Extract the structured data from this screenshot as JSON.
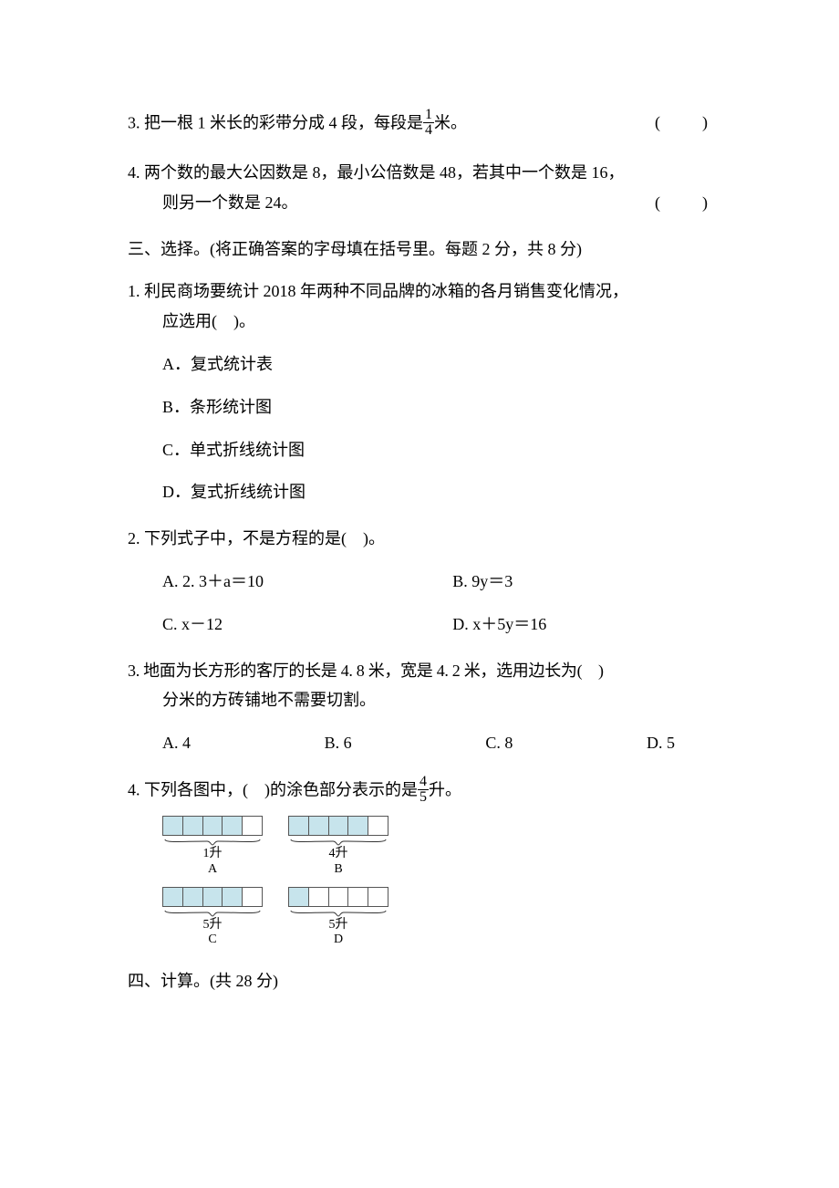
{
  "q3_tf": {
    "pre": "3. 把一根 1 米长的彩带分成 4 段，每段是",
    "frac_num": "1",
    "frac_den": "4",
    "post": "米。",
    "bracket": "( )"
  },
  "q4_tf": {
    "line1": "4. 两个数的最大公因数是 8，最小公倍数是 48，若其中一个数是 16，",
    "line2": "则另一个数是 24。",
    "bracket": "( )"
  },
  "section3": {
    "header": "三、选择。(将正确答案的字母填在括号里。每题 2 分，共 8 分)"
  },
  "s3q1": {
    "line1": "1. 利民商场要统计 2018 年两种不同品牌的冰箱的各月销售变化情况，",
    "line2": "应选用( )。",
    "optA": "A．复式统计表",
    "optB": "B．条形统计图",
    "optC": "C．单式折线统计图",
    "optD": "D．复式折线统计图"
  },
  "s3q2": {
    "stem": "2. 下列式子中，不是方程的是( )。",
    "optA": "A. 2. 3＋a＝10",
    "optB": "B. 9y＝3",
    "optC": "C. x－12",
    "optD": "D. x＋5y＝16"
  },
  "s3q3": {
    "line1": "3. 地面为长方形的客厅的长是 4. 8 米，宽是 4. 2 米，选用边长为( )",
    "line2": "分米的方砖铺地不需要切割。",
    "optA": "A. 4",
    "optB": "B. 6",
    "optC": "C. 8",
    "optD": "D. 5"
  },
  "s3q4": {
    "pre": "4. 下列各图中，( )的涂色部分表示的是",
    "frac_num": "4",
    "frac_den": "5",
    "post": "升。",
    "diagram": {
      "segs": 5,
      "shade_color": "#c7e4ec",
      "border_color": "#555555",
      "cells": [
        {
          "shaded_count": 4,
          "caption": "1升",
          "label": "A",
          "segs": 5
        },
        {
          "shaded_count": 4,
          "caption": "4升",
          "label": "B",
          "segs": 5
        },
        {
          "shaded_count": 4,
          "caption": "5升",
          "label": "C",
          "segs": 5
        },
        {
          "shaded_count": 1,
          "caption": "5升",
          "label": "D",
          "segs": 5
        }
      ]
    }
  },
  "section4": {
    "header": "四、计算。(共 28 分)"
  }
}
